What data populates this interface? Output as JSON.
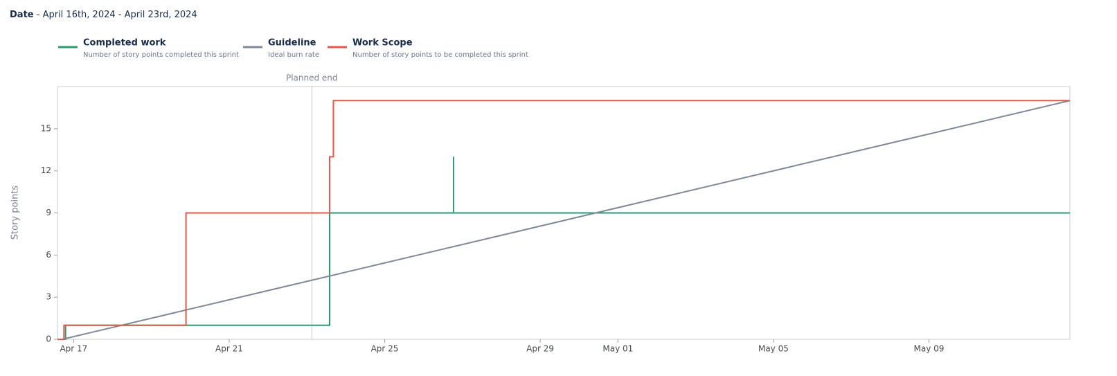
{
  "header": {
    "label": "Date",
    "text": "- April 16th, 2024 - April 23rd, 2024"
  },
  "chart_data": {
    "type": "line",
    "y_label": "Story points",
    "annotation": {
      "x": "2024-04-23T03:00",
      "label": "Planned end"
    },
    "xlim": [
      "2024-04-16T14:00",
      "2024-05-12T15:00"
    ],
    "xticks": [
      {
        "value": "2024-04-17",
        "label": "Apr 17"
      },
      {
        "value": "2024-04-21",
        "label": "Apr 21"
      },
      {
        "value": "2024-04-25",
        "label": "Apr 25"
      },
      {
        "value": "2024-04-29",
        "label": "Apr 29"
      },
      {
        "value": "2024-05-01",
        "label": "May 01"
      },
      {
        "value": "2024-05-05",
        "label": "May 05"
      },
      {
        "value": "2024-05-09",
        "label": "May 09"
      }
    ],
    "ylim": [
      0,
      18
    ],
    "yticks": [
      0,
      3,
      6,
      9,
      12,
      15
    ],
    "series": [
      {
        "name": "Completed work",
        "description": "Number of story points completed this sprint",
        "color": "#2b9c72",
        "x": [
          "2024-04-16T14:00",
          "2024-04-16T19:00",
          "2024-04-16T19:00",
          "2024-04-23T14:00",
          "2024-04-23T14:00",
          "2024-04-26T18:30",
          "2024-04-26T18:30",
          "2024-04-26T18:30",
          "2024-05-12T15:00"
        ],
        "values": [
          0,
          0,
          1,
          1,
          9,
          9,
          13,
          9,
          9
        ]
      },
      {
        "name": "Guideline",
        "description": "Ideal burn rate",
        "color": "#7e8898",
        "x": [
          "2024-04-16T17:00",
          "2024-05-12T15:00"
        ],
        "values": [
          0,
          17
        ]
      },
      {
        "name": "Work Scope",
        "description": "Number of story points to be completed this sprint",
        "color": "#e5574b",
        "x": [
          "2024-04-16T14:00",
          "2024-04-16T18:00",
          "2024-04-16T18:00",
          "2024-04-19T21:20",
          "2024-04-19T21:20",
          "2024-04-23T14:00",
          "2024-04-23T14:00",
          "2024-04-23T16:20",
          "2024-04-23T16:20",
          "2024-05-12T15:00"
        ],
        "values": [
          0,
          0,
          1,
          1,
          9,
          9,
          13,
          13,
          17,
          17
        ]
      }
    ]
  }
}
